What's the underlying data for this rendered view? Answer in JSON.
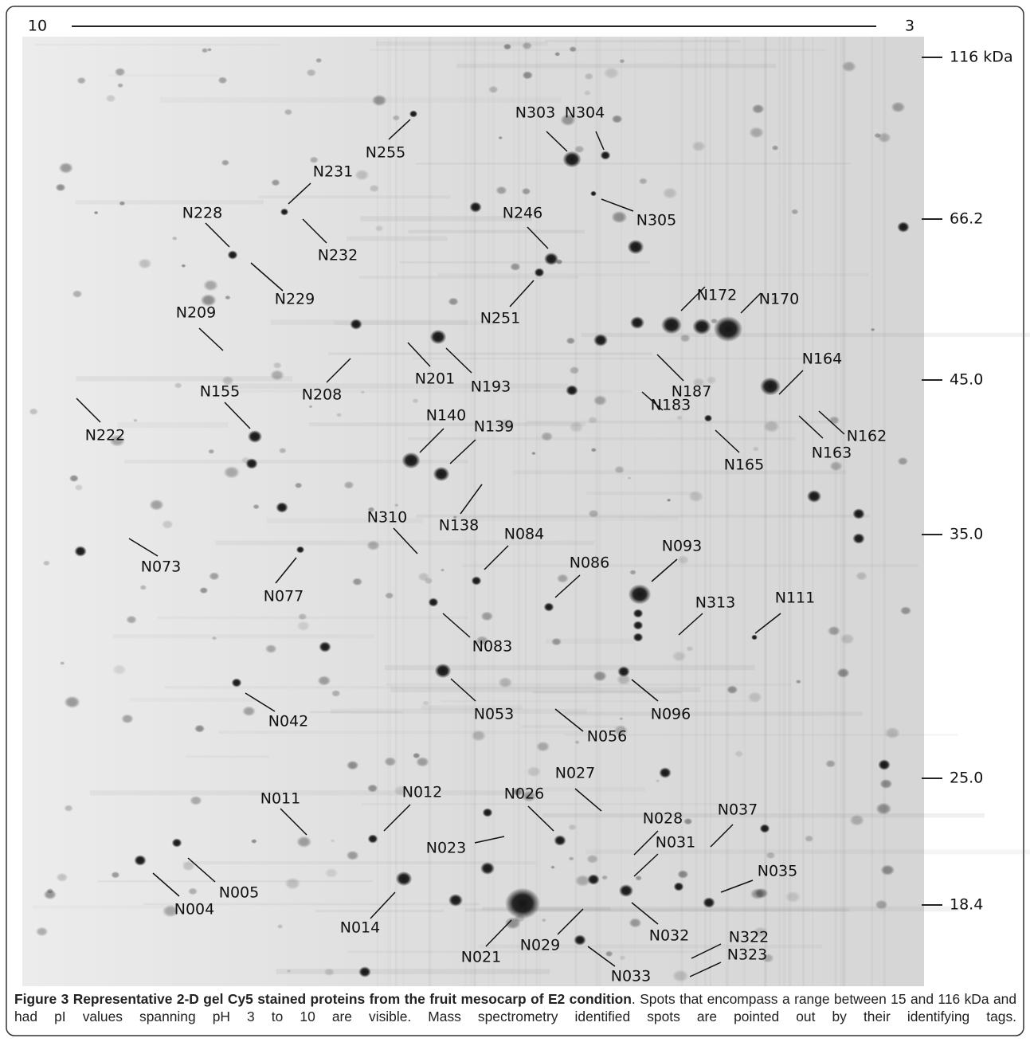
{
  "figure": {
    "ph_axis": {
      "left": "10",
      "right": "3"
    },
    "mass_markers": [
      "116 kDa",
      "66.2",
      "45.0",
      "35.0",
      "25.0",
      "18.4"
    ],
    "tags": [
      "N303",
      "N304",
      "N255",
      "N231",
      "N228",
      "N232",
      "N229",
      "N305",
      "N246",
      "N251",
      "N172",
      "N170",
      "N209",
      "N208",
      "N201",
      "N193",
      "N187",
      "N183",
      "N164",
      "N162",
      "N163",
      "N165",
      "N155",
      "N222",
      "N140",
      "N139",
      "N138",
      "N310",
      "N084",
      "N073",
      "N077",
      "N093",
      "N086",
      "N313",
      "N111",
      "N083",
      "N053",
      "N096",
      "N056",
      "N042",
      "N027",
      "N012",
      "N026",
      "N011",
      "N028",
      "N037",
      "N023",
      "N031",
      "N035",
      "N005",
      "N004",
      "N014",
      "N021",
      "N029",
      "N032",
      "N322",
      "N323",
      "N033"
    ],
    "caption": {
      "title": "Figure 3 Representative 2-D gel Cy5 stained proteins from the fruit mesocarp of E2 condition",
      "text": ". Spots that encompass a range between 15 and 116 kDa and had pI values spanning pH 3 to 10 are visible. Mass spectrometry identified spots are pointed out by their identifying tags."
    }
  }
}
